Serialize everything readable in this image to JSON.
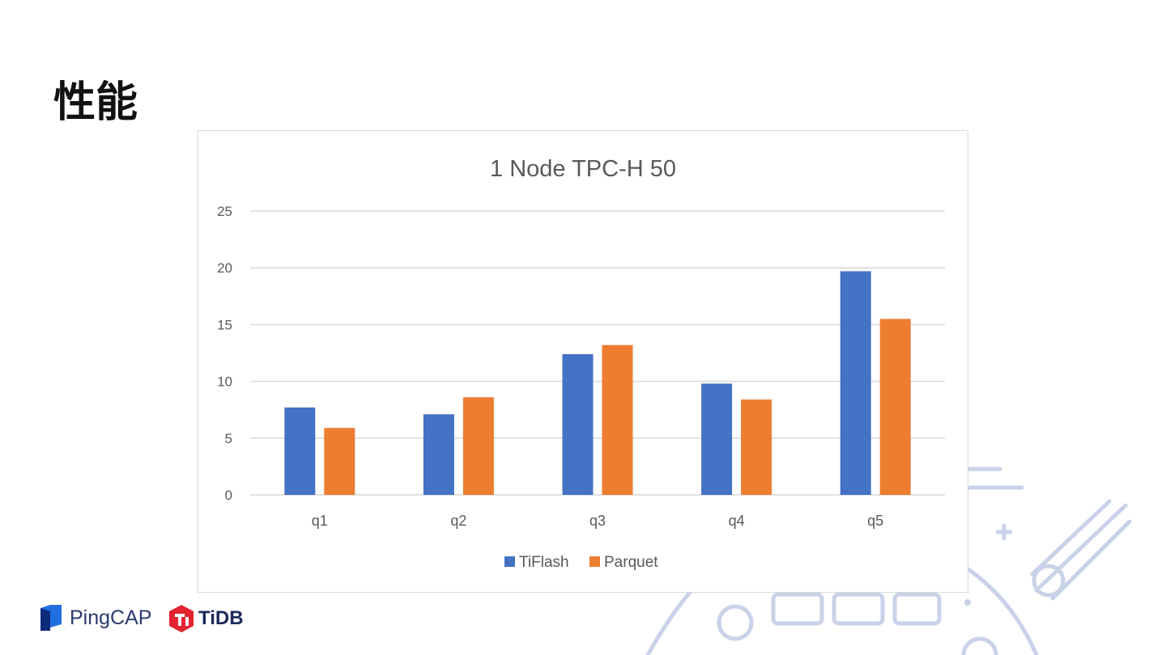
{
  "slide": {
    "title": "性能"
  },
  "logos": {
    "pingcap": "PingCAP",
    "tidb": "TiDB"
  },
  "chart_data": {
    "type": "bar",
    "title": "1 Node TPC-H 50",
    "xlabel": "",
    "ylabel": "",
    "categories": [
      "q1",
      "q2",
      "q3",
      "q4",
      "q5"
    ],
    "series": [
      {
        "name": "TiFlash",
        "color": "#4472c4",
        "values": [
          7.7,
          7.1,
          12.4,
          9.8,
          19.7
        ]
      },
      {
        "name": "Parquet",
        "color": "#ed7d31",
        "values": [
          5.9,
          8.6,
          13.2,
          8.4,
          15.5
        ]
      }
    ],
    "ylim": [
      0,
      25
    ],
    "yticks": [
      0,
      5,
      10,
      15,
      20,
      25
    ],
    "grid": true,
    "legend": "bottom"
  }
}
